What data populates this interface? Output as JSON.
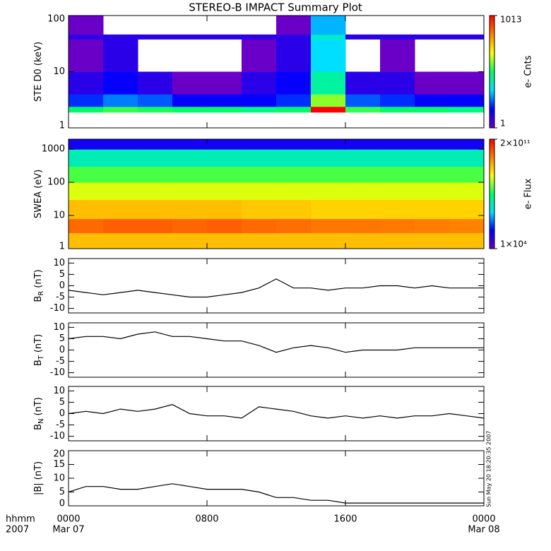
{
  "title": "STEREO-B IMPACT Summary Plot",
  "timestamp": "Sun May 20 18:20:35 2007",
  "x_axis": {
    "left_labels": [
      "hhmm",
      "2007"
    ],
    "xlim": [
      0,
      24
    ],
    "xticks": [
      {
        "value": 0,
        "label": "0000"
      },
      {
        "value": 8,
        "label": "0800"
      },
      {
        "value": 16,
        "label": "1600"
      },
      {
        "value": 24,
        "label": "0000"
      }
    ],
    "dates": [
      {
        "value": 0,
        "label": "Mar 07"
      },
      {
        "value": 24,
        "label": "Mar 08"
      }
    ]
  },
  "chart_data": [
    {
      "type": "heatmap",
      "ylabel": "STE D0 (keV)",
      "log_y": true,
      "ylim": [
        1,
        100
      ],
      "yticks": [
        1,
        10,
        100
      ],
      "colorbar_label": "e- Cnts",
      "clim": [
        1,
        1013
      ],
      "cticks": [
        1,
        1013
      ],
      "colormap": [
        "#6a00c8",
        "#0000ff",
        "#00e0ff",
        "#00ff60",
        "#ffff00",
        "#ff8000",
        "#ff0000"
      ],
      "xbins": [
        0,
        2,
        4,
        6,
        8,
        10,
        12,
        14,
        16,
        18,
        20,
        22,
        24
      ],
      "ybins": [
        1.9,
        2.4,
        4,
        10,
        38,
        46,
        100
      ],
      "values": [
        [
          30,
          40,
          35,
          30,
          30,
          25,
          30,
          1013,
          40,
          30,
          30,
          25
        ],
        [
          4,
          6,
          5,
          3,
          3,
          3,
          4,
          60,
          5,
          4,
          3,
          3
        ],
        [
          2,
          3,
          2,
          1,
          1,
          2,
          3,
          20,
          2,
          2,
          1,
          1
        ],
        [
          1,
          2,
          null,
          null,
          null,
          1,
          2,
          10,
          null,
          1,
          null,
          null
        ],
        [
          2,
          2,
          2,
          2,
          2,
          2,
          2,
          15,
          2,
          2,
          2,
          2
        ],
        [
          1,
          null,
          null,
          null,
          null,
          null,
          1,
          8,
          null,
          null,
          null,
          null
        ]
      ]
    },
    {
      "type": "heatmap",
      "ylabel": "SWEA (eV)",
      "log_y": true,
      "ylim": [
        1,
        2000
      ],
      "yticks": [
        1,
        10,
        100,
        1000
      ],
      "colorbar_label": "e- Flux",
      "clim": [
        10000,
        200000000000
      ],
      "cticks": [
        {
          "value": 10000,
          "label": "1×10⁴"
        },
        {
          "value": 200000000000,
          "label": "2×10¹¹"
        }
      ],
      "colormap": [
        "#6a00c8",
        "#0000ff",
        "#00e0ff",
        "#00ff60",
        "#ffff00",
        "#ff8000",
        "#ff0000"
      ],
      "xbins": [
        0,
        2,
        4,
        6,
        8,
        10,
        12,
        14,
        16,
        18,
        20,
        22,
        24
      ],
      "ybins": [
        1,
        3,
        8,
        30,
        100,
        300,
        1000,
        2000
      ],
      "values": [
        [
          3000000000,
          3000000000,
          3000000000,
          3000000000,
          3000000000,
          3000000000,
          3000000000,
          3000000000,
          3000000000,
          3000000000,
          3000000000,
          3000000000
        ],
        [
          20000000000,
          25000000000,
          25000000000,
          22000000000,
          25000000000,
          20000000000,
          18000000000,
          15000000000,
          15000000000,
          14000000000,
          13000000000,
          12000000000
        ],
        [
          3000000000,
          3000000000,
          3000000000,
          3000000000,
          3000000000,
          2500000000,
          2500000000,
          2000000000,
          2000000000,
          2000000000,
          2000000000,
          2000000000
        ],
        [
          500000000,
          500000000,
          500000000,
          500000000,
          500000000,
          500000000,
          500000000,
          500000000,
          500000000,
          500000000,
          500000000,
          500000000
        ],
        [
          100000000,
          100000000,
          100000000,
          100000000,
          100000000,
          100000000,
          100000000,
          100000000,
          100000000,
          100000000,
          100000000,
          100000000
        ],
        [
          10000000,
          10000000,
          10000000,
          10000000,
          10000000,
          10000000,
          10000000,
          10000000,
          10000000,
          10000000,
          10000000,
          10000000
        ],
        [
          100000,
          100000,
          100000,
          100000,
          100000,
          100000,
          100000,
          100000,
          100000,
          100000,
          100000,
          100000
        ]
      ]
    },
    {
      "type": "line",
      "ylabel": "B",
      "ylabel_sub": "R",
      "ylabel_unit": "(nT)",
      "color": "#000000",
      "ylim": [
        -12,
        12
      ],
      "yticks": [
        -10,
        -5,
        0,
        5,
        10
      ],
      "x": [
        0,
        1,
        2,
        3,
        4,
        5,
        6,
        7,
        8,
        9,
        10,
        11,
        12,
        13,
        14,
        15,
        16,
        17,
        18,
        19,
        20,
        21,
        22,
        23,
        24
      ],
      "values": [
        -2,
        -3,
        -4,
        -3,
        -2,
        -3,
        -4,
        -5,
        -5,
        -4,
        -3,
        -1,
        3,
        -1,
        -1,
        -2,
        -1,
        -1,
        0,
        0,
        -1,
        0,
        -1,
        -1,
        -1
      ]
    },
    {
      "type": "line",
      "ylabel": "B",
      "ylabel_sub": "T",
      "ylabel_unit": "(nT)",
      "color": "#000000",
      "ylim": [
        -12,
        12
      ],
      "yticks": [
        -10,
        -5,
        0,
        5,
        10
      ],
      "x": [
        0,
        1,
        2,
        3,
        4,
        5,
        6,
        7,
        8,
        9,
        10,
        11,
        12,
        13,
        14,
        15,
        16,
        17,
        18,
        19,
        20,
        21,
        22,
        23,
        24
      ],
      "values": [
        5,
        6,
        6,
        5,
        7,
        8,
        6,
        6,
        5,
        4,
        4,
        2,
        -1,
        1,
        2,
        1,
        -1,
        0,
        0,
        0,
        1,
        1,
        1,
        1,
        1
      ]
    },
    {
      "type": "line",
      "ylabel": "B",
      "ylabel_sub": "N",
      "ylabel_unit": "(nT)",
      "color": "#000000",
      "ylim": [
        -12,
        12
      ],
      "yticks": [
        -10,
        -5,
        0,
        5,
        10
      ],
      "x": [
        0,
        1,
        2,
        3,
        4,
        5,
        6,
        7,
        8,
        9,
        10,
        11,
        12,
        13,
        14,
        15,
        16,
        17,
        18,
        19,
        20,
        21,
        22,
        23,
        24
      ],
      "values": [
        0,
        1,
        0,
        2,
        1,
        2,
        4,
        0,
        -1,
        -1,
        -2,
        3,
        2,
        1,
        -1,
        -2,
        -1,
        -2,
        -1,
        -2,
        -1,
        -1,
        0,
        -1,
        -2
      ]
    },
    {
      "type": "line",
      "ylabel": "|B|",
      "ylabel_unit": "(nT)",
      "color": "#000000",
      "ylim": [
        0,
        20
      ],
      "yticks": [
        0,
        5,
        10,
        15,
        20
      ],
      "x": [
        0,
        1,
        2,
        3,
        4,
        5,
        6,
        7,
        8,
        9,
        10,
        11,
        12,
        13,
        14,
        15,
        16,
        17,
        18,
        19,
        20,
        21,
        22,
        23,
        24
      ],
      "values": [
        5,
        7,
        7,
        6,
        6,
        7,
        8,
        7,
        6,
        6,
        6,
        5,
        3,
        3,
        2,
        2,
        1,
        1,
        1,
        1,
        1,
        1,
        1,
        1,
        1
      ]
    }
  ]
}
